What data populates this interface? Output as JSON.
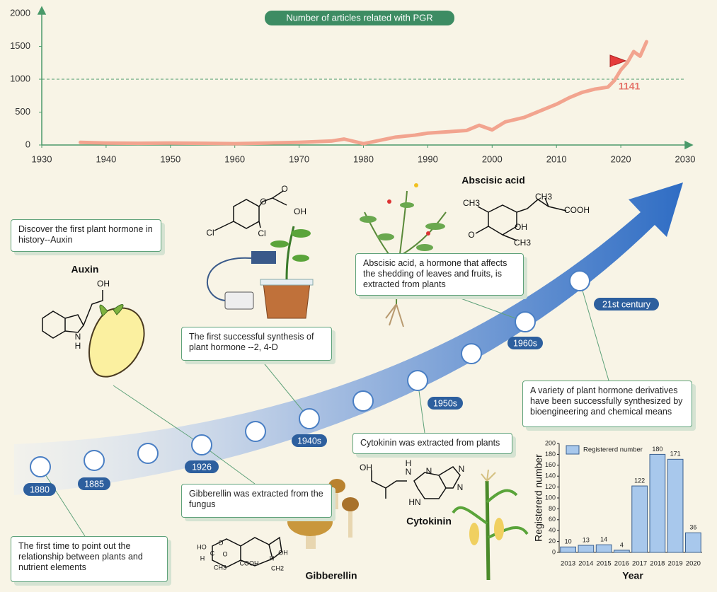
{
  "chart_data": [
    {
      "type": "line",
      "title": "Number of articles related with PGR",
      "color": "#f2a48f",
      "x": [
        1936,
        1940,
        1945,
        1950,
        1955,
        1960,
        1965,
        1970,
        1975,
        1977,
        1980,
        1983,
        1985,
        1988,
        1990,
        1993,
        1996,
        1998,
        2000,
        2002,
        2005,
        2007,
        2010,
        2012,
        2014,
        2016,
        2018,
        2019,
        2020,
        2021,
        2022,
        2023,
        2024
      ],
      "values": [
        40,
        30,
        25,
        30,
        25,
        20,
        30,
        40,
        60,
        90,
        20,
        80,
        120,
        150,
        180,
        200,
        220,
        300,
        230,
        350,
        420,
        500,
        620,
        720,
        800,
        850,
        880,
        980,
        1141,
        1250,
        1420,
        1350,
        1570
      ],
      "xlim": [
        1930,
        2030
      ],
      "xticks": [
        1930,
        1940,
        1950,
        1960,
        1970,
        1980,
        1990,
        2000,
        2010,
        2020,
        2030
      ],
      "ylim": [
        0,
        2000
      ],
      "yticks": [
        0,
        500,
        1000,
        1500,
        2000
      ],
      "reference_line": 1000,
      "annotations": [
        {
          "x": 2020,
          "value": 1141
        }
      ]
    },
    {
      "type": "bar",
      "x_label": "Year",
      "y_label": "Registererd number",
      "color": "#a8c8ec",
      "series": [
        {
          "name": "Registererd number",
          "color": "#a8c8ec",
          "values": [
            10,
            13,
            14,
            4,
            122,
            180,
            171,
            36
          ]
        }
      ],
      "categories": [
        "2013",
        "2014",
        "2015",
        "2016",
        "2017",
        "2018",
        "2019",
        "2020"
      ],
      "ylim": [
        0,
        200
      ],
      "yticks": [
        0,
        20,
        40,
        60,
        80,
        100,
        120,
        140,
        160,
        180,
        200
      ],
      "legend": "top-left"
    }
  ],
  "timeline": {
    "periods": [
      "1880",
      "1885",
      "1926",
      "1940s",
      "1950s",
      "1960s",
      "21st century"
    ],
    "events": [
      "Discover the first plant hormone in history--Auxin",
      "The first successful synthesis of plant hormone --2, 4-D",
      "Abscisic acid, a hormone that affects the shedding of leaves and fruits, is extracted from plants",
      "Cytokinin was extracted from plants",
      "Gibberellin was extracted from the fungus",
      "A variety of plant hormone derivatives have been successfully synthesized by bioengineering and chemical means",
      "The first time to point out the relationship between plants and nutrient elements"
    ]
  },
  "molecules": {
    "two_four_d": {
      "atoms": [
        "O",
        "O",
        "OH",
        "Cl",
        "Cl"
      ]
    },
    "auxin": {
      "name": "Auxin",
      "atoms": [
        "OH",
        "N",
        "H"
      ]
    },
    "abscisic": {
      "name": "Abscisic acid",
      "atoms": [
        "CH3",
        "CH3",
        "COOH",
        "O",
        "OH",
        "CH3"
      ]
    },
    "cytokinin": {
      "name": "Cytokinin",
      "atoms": [
        "OH",
        "H",
        "N",
        "N",
        "N",
        "HN",
        "N"
      ]
    },
    "gibberellin": {
      "name": "Gibberellin",
      "atoms": [
        "HO",
        "O",
        "C",
        "O",
        "H",
        "CH3",
        "COOH",
        "H",
        "OH",
        "CH2"
      ]
    }
  }
}
